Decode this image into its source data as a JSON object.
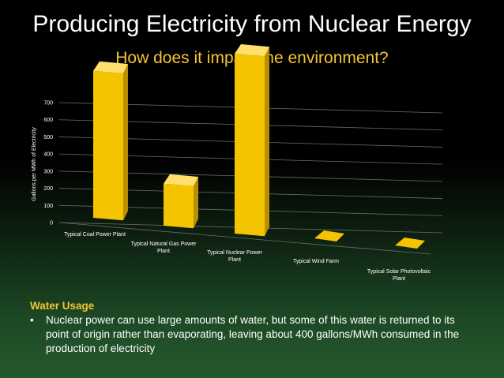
{
  "slide": {
    "title": "Producing Electricity from Nuclear Energy",
    "subtitle": "How does it impact the environment?"
  },
  "notes": {
    "heading": "Water Usage",
    "bullet_mark": "•",
    "bullet": "Nuclear power can use large amounts of water, but some of this water is returned to its point of origin rather than evaporating, leaving about 400 gallons/MWh consumed in the production of electricity"
  },
  "colors": {
    "bar_front": "#f5c400",
    "bar_side": "#b98f00",
    "bar_top": "#ffe06a",
    "grid": "#6a6a6a",
    "accent": "#f4c431"
  },
  "chart_data": {
    "type": "bar",
    "categories": [
      "Typical Coal Power Plant",
      "Typical Natural Gas Power Plant",
      "Typical Nuclear Power Plant",
      "Typical Wind Farm",
      "Typical Solar Photovoltaic Plant"
    ],
    "category_lines": [
      [
        "Typical Coal Power Plant"
      ],
      [
        "Typical Natural Gas Power",
        "Plant"
      ],
      [
        "Typical Nuclear Power",
        "Plant"
      ],
      [
        "Typical Wind Farm"
      ],
      [
        "Typical Solar Photovoltaic",
        "Plant"
      ]
    ],
    "values": [
      490,
      140,
      600,
      0,
      0
    ],
    "ylabel": "Gallons per MWh of Electricity",
    "ylim": [
      0,
      700
    ],
    "yticks": [
      0,
      100,
      200,
      300,
      400,
      500,
      600,
      700
    ],
    "grid": true,
    "style": "3d"
  }
}
